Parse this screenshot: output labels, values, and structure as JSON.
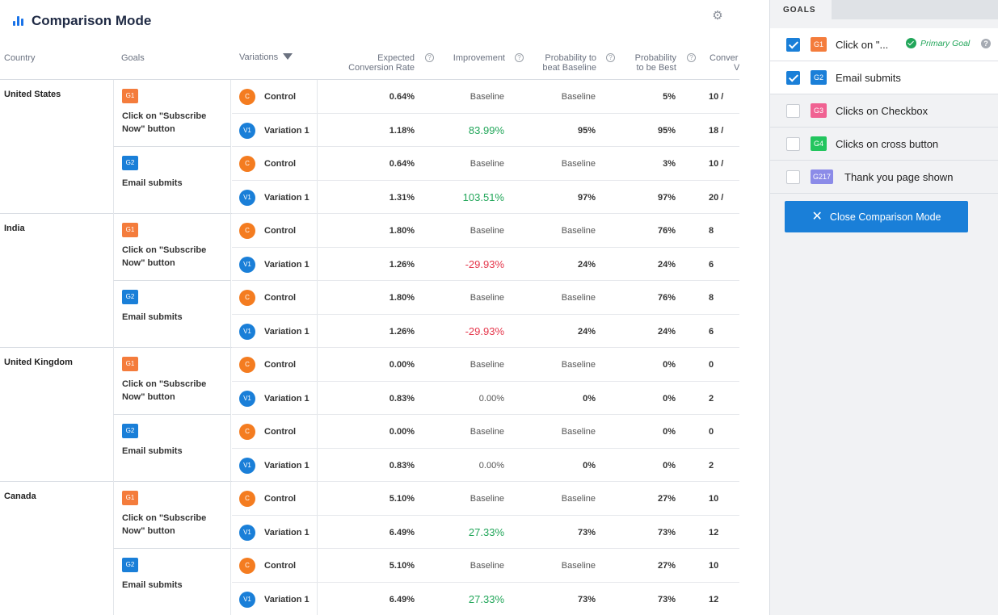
{
  "header": {
    "title": "Comparison Mode",
    "settings_icon": "gear-icon"
  },
  "columns": {
    "country": "Country",
    "goals": "Goals",
    "variations": "Variations",
    "rate_l1": "Expected",
    "rate_l2": "Conversion Rate",
    "improvement": "Improvement",
    "beat_l1": "Probability to",
    "beat_l2": "beat Baseline",
    "best_l1": "Probability",
    "best_l2": "to be Best",
    "conv_l1": "Conver",
    "conv_l2": "V"
  },
  "colors": {
    "accent": "#1a7fd8",
    "positive": "#22a65a",
    "negative": "#e5364b",
    "g1": "#f47c3c",
    "g2": "#1a7fd8"
  },
  "rows": [
    {
      "country": "United States",
      "goals": [
        {
          "badge": "G1",
          "label": "Click on \"Subscribe Now\" button",
          "variations": [
            {
              "badge": "C",
              "name": "Control",
              "rate": "0.64%",
              "improvement": "Baseline",
              "beat": "Baseline",
              "best": "5%",
              "conv": "10 /"
            },
            {
              "badge": "V1",
              "name": "Variation 1",
              "rate": "1.18%",
              "improvement": "83.99%",
              "beat": "95%",
              "best": "95%",
              "conv": "18 /"
            }
          ]
        },
        {
          "badge": "G2",
          "label": "Email submits",
          "variations": [
            {
              "badge": "C",
              "name": "Control",
              "rate": "0.64%",
              "improvement": "Baseline",
              "beat": "Baseline",
              "best": "3%",
              "conv": "10 /"
            },
            {
              "badge": "V1",
              "name": "Variation 1",
              "rate": "1.31%",
              "improvement": "103.51%",
              "beat": "97%",
              "best": "97%",
              "conv": "20 /"
            }
          ]
        }
      ]
    },
    {
      "country": "India",
      "goals": [
        {
          "badge": "G1",
          "label": "Click on \"Subscribe Now\" button",
          "variations": [
            {
              "badge": "C",
              "name": "Control",
              "rate": "1.80%",
              "improvement": "Baseline",
              "beat": "Baseline",
              "best": "76%",
              "conv": "8"
            },
            {
              "badge": "V1",
              "name": "Variation 1",
              "rate": "1.26%",
              "improvement": "-29.93%",
              "beat": "24%",
              "best": "24%",
              "conv": "6"
            }
          ]
        },
        {
          "badge": "G2",
          "label": "Email submits",
          "variations": [
            {
              "badge": "C",
              "name": "Control",
              "rate": "1.80%",
              "improvement": "Baseline",
              "beat": "Baseline",
              "best": "76%",
              "conv": "8"
            },
            {
              "badge": "V1",
              "name": "Variation 1",
              "rate": "1.26%",
              "improvement": "-29.93%",
              "beat": "24%",
              "best": "24%",
              "conv": "6"
            }
          ]
        }
      ]
    },
    {
      "country": "United Kingdom",
      "goals": [
        {
          "badge": "G1",
          "label": "Click on \"Subscribe Now\" button",
          "variations": [
            {
              "badge": "C",
              "name": "Control",
              "rate": "0.00%",
              "improvement": "Baseline",
              "beat": "Baseline",
              "best": "0%",
              "conv": "0"
            },
            {
              "badge": "V1",
              "name": "Variation 1",
              "rate": "0.83%",
              "improvement": "0.00%",
              "beat": "0%",
              "best": "0%",
              "conv": "2"
            }
          ]
        },
        {
          "badge": "G2",
          "label": "Email submits",
          "variations": [
            {
              "badge": "C",
              "name": "Control",
              "rate": "0.00%",
              "improvement": "Baseline",
              "beat": "Baseline",
              "best": "0%",
              "conv": "0"
            },
            {
              "badge": "V1",
              "name": "Variation 1",
              "rate": "0.83%",
              "improvement": "0.00%",
              "beat": "0%",
              "best": "0%",
              "conv": "2"
            }
          ]
        }
      ]
    },
    {
      "country": "Canada",
      "goals": [
        {
          "badge": "G1",
          "label": "Click on \"Subscribe Now\" button",
          "variations": [
            {
              "badge": "C",
              "name": "Control",
              "rate": "5.10%",
              "improvement": "Baseline",
              "beat": "Baseline",
              "best": "27%",
              "conv": "10"
            },
            {
              "badge": "V1",
              "name": "Variation 1",
              "rate": "6.49%",
              "improvement": "27.33%",
              "beat": "73%",
              "best": "73%",
              "conv": "12"
            }
          ]
        },
        {
          "badge": "G2",
          "label": "Email submits",
          "variations": [
            {
              "badge": "C",
              "name": "Control",
              "rate": "5.10%",
              "improvement": "Baseline",
              "beat": "Baseline",
              "best": "27%",
              "conv": "10"
            },
            {
              "badge": "V1",
              "name": "Variation 1",
              "rate": "6.49%",
              "improvement": "27.33%",
              "beat": "73%",
              "best": "73%",
              "conv": "12"
            }
          ]
        }
      ]
    }
  ],
  "sidebar": {
    "tab": "GOALS",
    "goals": [
      {
        "badge": "G1",
        "label": "Click on \"...",
        "checked": true,
        "primary": "Primary Goal",
        "color": "#f47c3c"
      },
      {
        "badge": "G2",
        "label": "Email submits",
        "checked": true,
        "color": "#1a7fd8"
      },
      {
        "badge": "G3",
        "label": "Clicks on Checkbox",
        "checked": false,
        "color": "#f06292"
      },
      {
        "badge": "G4",
        "label": "Clicks on cross button",
        "checked": false,
        "color": "#22c55e"
      },
      {
        "badge": "G217",
        "label": "Thank you page shown",
        "checked": false,
        "color": "#8b8be8"
      }
    ],
    "close_label": "Close Comparison Mode"
  }
}
